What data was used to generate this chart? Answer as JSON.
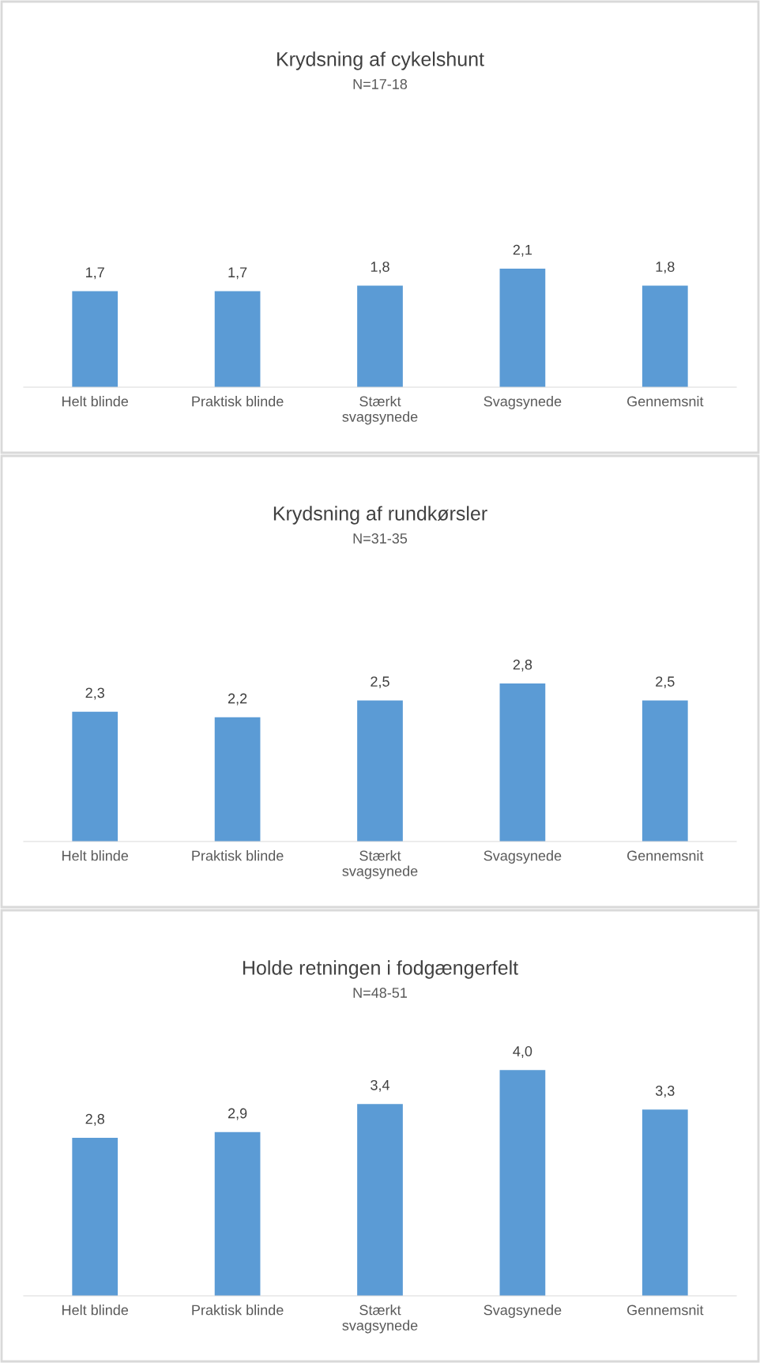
{
  "chart_data": [
    {
      "type": "bar",
      "title": "Krydsning af cykelshunt",
      "subtitle": "N=17-18",
      "categories": [
        "Helt blinde",
        "Praktisk blinde",
        "Stærkt svagsynede",
        "Svagsynede",
        "Gennemsnit"
      ],
      "values": [
        1.7,
        1.7,
        1.8,
        2.1,
        1.8
      ],
      "value_labels": [
        "1,7",
        "1,7",
        "1,8",
        "2,1",
        "1,8"
      ],
      "color": "#5b9bd5",
      "grid": false,
      "legend": false
    },
    {
      "type": "bar",
      "title": "Krydsning af rundkørsler",
      "subtitle": "N=31-35",
      "categories": [
        "Helt blinde",
        "Praktisk blinde",
        "Stærkt svagsynede",
        "Svagsynede",
        "Gennemsnit"
      ],
      "values": [
        2.3,
        2.2,
        2.5,
        2.8,
        2.5
      ],
      "value_labels": [
        "2,3",
        "2,2",
        "2,5",
        "2,8",
        "2,5"
      ],
      "color": "#5b9bd5",
      "grid": false,
      "legend": false
    },
    {
      "type": "bar",
      "title": "Holde retningen i fodgængerfelt",
      "subtitle": "N=48-51",
      "categories": [
        "Helt blinde",
        "Praktisk blinde",
        "Stærkt svagsynede",
        "Svagsynede",
        "Gennemsnit"
      ],
      "values": [
        2.8,
        2.9,
        3.4,
        4.0,
        3.3
      ],
      "value_labels": [
        "2,8",
        "2,9",
        "3,4",
        "4,0",
        "3,3"
      ],
      "color": "#5b9bd5",
      "grid": false,
      "legend": false
    }
  ]
}
